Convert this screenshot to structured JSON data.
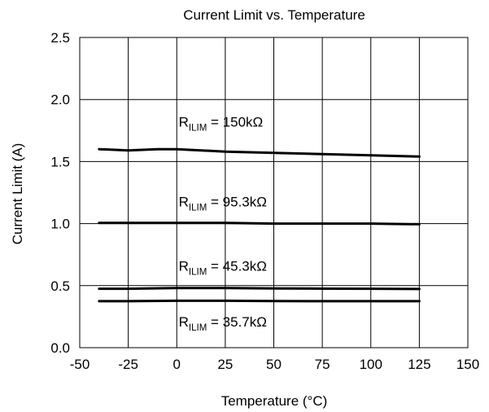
{
  "chart_data": {
    "type": "line",
    "title": "Current Limit vs. Temperature",
    "xlabel": "Temperature (°C)",
    "ylabel": "Current Limit (A)",
    "xlim": [
      -50,
      150
    ],
    "ylim": [
      0,
      2.5
    ],
    "xticks": [
      -50,
      -25,
      0,
      25,
      50,
      75,
      100,
      125,
      150
    ],
    "yticks": [
      0.0,
      0.5,
      1.0,
      1.5,
      2.0,
      2.5
    ],
    "xtick_labels": [
      "-50",
      "-25",
      "0",
      "25",
      "50",
      "75",
      "100",
      "125",
      "150"
    ],
    "ytick_labels": [
      "0.0",
      "0.5",
      "1.0",
      "1.5",
      "2.0",
      "2.5"
    ],
    "grid": true,
    "legend": "none",
    "line_color": "#000000",
    "series": [
      {
        "x": [
          -40,
          -25,
          -10,
          0,
          25,
          50,
          75,
          100,
          125
        ],
        "values": [
          1.6,
          1.59,
          1.6,
          1.6,
          1.58,
          1.57,
          1.56,
          1.55,
          1.54
        ]
      },
      {
        "x": [
          -40,
          -25,
          0,
          25,
          50,
          75,
          100,
          125
        ],
        "values": [
          1.005,
          1.005,
          1.005,
          1.005,
          1.0,
          1.0,
          1.0,
          0.995
        ]
      },
      {
        "x": [
          -40,
          -25,
          0,
          25,
          50,
          75,
          100,
          125
        ],
        "values": [
          0.475,
          0.475,
          0.48,
          0.48,
          0.478,
          0.476,
          0.475,
          0.473
        ]
      },
      {
        "x": [
          -40,
          -25,
          0,
          25,
          50,
          75,
          100,
          125
        ],
        "values": [
          0.375,
          0.375,
          0.378,
          0.378,
          0.376,
          0.375,
          0.375,
          0.375
        ]
      }
    ],
    "annotations": [
      {
        "main": "R",
        "sub": "ILIM",
        "rest": " = 150kΩ",
        "x": 1,
        "y": 1.78
      },
      {
        "main": "R",
        "sub": "ILIM",
        "rest": " = 95.3kΩ",
        "x": 1,
        "y": 1.14
      },
      {
        "main": "R",
        "sub": "ILIM",
        "rest": " = 45.3kΩ",
        "x": 1,
        "y": 0.62
      },
      {
        "main": "R",
        "sub": "ILIM",
        "rest": " = 35.7kΩ",
        "x": 1,
        "y": 0.17
      }
    ]
  }
}
